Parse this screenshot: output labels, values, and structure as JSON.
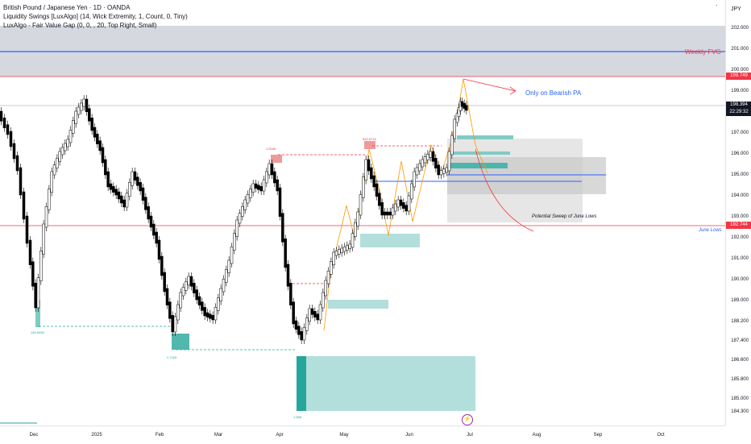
{
  "legend": {
    "symbol": "British Pound / Japanese Yen · 1D · OANDA",
    "indicator1": "Liquidity Swings [LuxAlgo] (14, Wick Extremity, 1, Count, 0, Tiny)",
    "indicator2": "LuxAlgo - Fair Value Gap (0, 0, , 20, Top Right, Small)"
  },
  "price_axis": {
    "currency": "JPY",
    "ticks": [
      "202.000",
      "201.000",
      "200.000",
      "199.000",
      "198.000",
      "197.000",
      "196.000",
      "195.000",
      "194.000",
      "193.000",
      "192.000",
      "191.000",
      "190.000",
      "189.000",
      "188.200",
      "187.400",
      "186.600",
      "185.800",
      "185.000",
      "184.300"
    ],
    "tags": {
      "fvg_level": "199.749",
      "last_price": "198.394",
      "countdown": "22:29:32",
      "june_lows": "192.744"
    }
  },
  "time_axis": {
    "labels": [
      "Dec",
      "2025",
      "Feb",
      "Mar",
      "Apr",
      "May",
      "Jun",
      "Jul",
      "Aug",
      "Sep",
      "Oct"
    ]
  },
  "annotations": {
    "weekly_fvg": "Weekly FVG",
    "bearish_pa": "Only on Bearish PA",
    "sweep": "Potential Sweep of June Lows",
    "june_lows": "June Lows",
    "swing1": "146.509K",
    "swing2": "2.742K",
    "swing3": "1.58K",
    "swing4": "1.516K",
    "swing5": "520.571K"
  },
  "colors": {
    "bull": "#ffffff",
    "bear": "#000000",
    "fvg_zone": "#b2dfdb",
    "fvg_dark": "#26a69a",
    "grey_zone": "#d1d4dc",
    "blue_line": "#2962ff",
    "red_line": "#f23645",
    "orange": "#ff9800"
  },
  "chart_data": {
    "type": "candlestick",
    "symbol": "GBPJPY",
    "timeframe": "1D",
    "ylim": [
      184.0,
      203.0
    ],
    "last_price": 198.394,
    "levels": {
      "weekly_fvg": 200.9,
      "upper_red": 199.749,
      "june_lows": 192.744,
      "blue_mid": 195.0
    }
  }
}
